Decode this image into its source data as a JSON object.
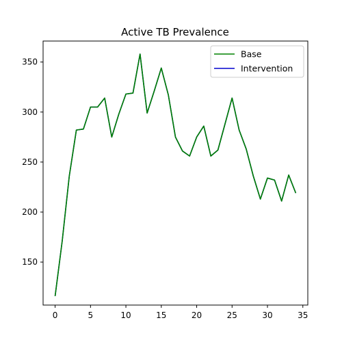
{
  "chart_data": {
    "type": "line",
    "title": "Active TB Prevalence",
    "xlabel": "",
    "ylabel": "",
    "xlim": [
      -1.7,
      35.7
    ],
    "ylim": [
      107,
      371
    ],
    "xticks": [
      0,
      5,
      10,
      15,
      20,
      25,
      30,
      35
    ],
    "yticks": [
      150,
      200,
      250,
      300,
      350
    ],
    "grid": false,
    "legend_position": "top-right",
    "x": [
      0,
      1,
      2,
      3,
      4,
      5,
      6,
      7,
      8,
      9,
      10,
      11,
      12,
      13,
      14,
      15,
      16,
      17,
      18,
      19,
      20,
      21,
      22,
      23,
      24,
      25,
      26,
      27,
      28,
      29,
      30,
      31,
      32,
      33,
      34
    ],
    "series": [
      {
        "name": "Base",
        "color": "#008000",
        "values": [
          116,
          171,
          236,
          282,
          283,
          305,
          305,
          314,
          275,
          298,
          318,
          319,
          358,
          299,
          321,
          344,
          317,
          275,
          261,
          256,
          275,
          286,
          256,
          262,
          288,
          314,
          282,
          263,
          236,
          213,
          234,
          232,
          211,
          237,
          219
        ]
      },
      {
        "name": "Intervention",
        "color": "#0000cd",
        "values": [
          116,
          171,
          236,
          282,
          283,
          305,
          305,
          314,
          275,
          298,
          318,
          319,
          358,
          299,
          321,
          344,
          317,
          275,
          261,
          256,
          275,
          286,
          256,
          262,
          288,
          314,
          282,
          263,
          236,
          213,
          234,
          232,
          211,
          237,
          219
        ]
      }
    ]
  }
}
